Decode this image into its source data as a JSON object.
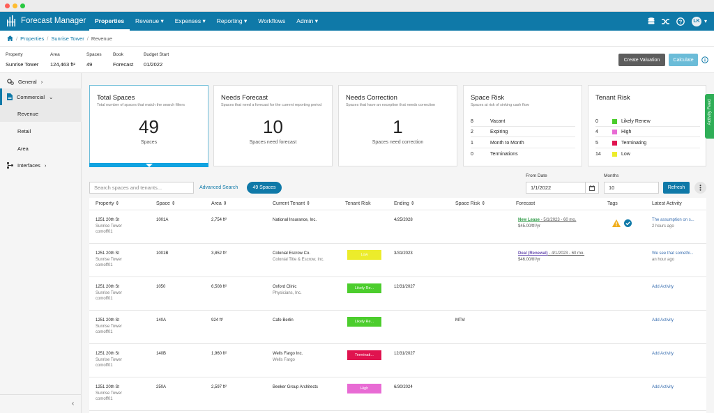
{
  "app": {
    "brand": "Forecast Manager"
  },
  "nav": {
    "items": [
      "Properties",
      "Revenue",
      "Expenses",
      "Reporting",
      "Workflows",
      "Admin"
    ],
    "user_initials": "LK"
  },
  "breadcrumb": [
    "Properties",
    "Sunrise Tower",
    "Revenue"
  ],
  "property_bar": {
    "fields": [
      {
        "label": "Property",
        "value": "Sunrise Tower"
      },
      {
        "label": "Area",
        "value": "124,463 ft²"
      },
      {
        "label": "Spaces",
        "value": "49"
      },
      {
        "label": "Book",
        "value": "Forecast"
      },
      {
        "label": "Budget Start",
        "value": "01/2022"
      }
    ],
    "create_valuation": "Create Valuation",
    "calculate": "Calculate"
  },
  "sidebar": {
    "items": [
      "General",
      "Commercial",
      "Revenue",
      "Retail",
      "Area",
      "Interfaces"
    ],
    "collapse": "‹"
  },
  "cards": {
    "total": {
      "title": "Total Spaces",
      "desc": "Total number of spaces that match the search filters",
      "value": "49",
      "caption": "Spaces"
    },
    "forecast": {
      "title": "Needs Forecast",
      "desc": "Spaces that need a forecast for the current reporting period",
      "value": "10",
      "caption": "Spaces need forecast"
    },
    "correction": {
      "title": "Needs Correction",
      "desc": "Spaces that have an exception that needs correction",
      "value": "1",
      "caption": "Spaces need correction"
    },
    "space_risk": {
      "title": "Space Risk",
      "desc": "Spaces at risk of sinking cash flow",
      "rows": [
        {
          "n": "8",
          "label": "Vacant"
        },
        {
          "n": "2",
          "label": "Expiring"
        },
        {
          "n": "1",
          "label": "Month to Month"
        },
        {
          "n": "0",
          "label": "Terminations"
        }
      ]
    },
    "tenant_risk": {
      "title": "Tenant Risk",
      "rows": [
        {
          "n": "0",
          "label": "Likely Renew",
          "color": "#4ccd2d"
        },
        {
          "n": "4",
          "label": "High",
          "color": "#e86bd4"
        },
        {
          "n": "5",
          "label": "Terminating",
          "color": "#e0134f"
        },
        {
          "n": "14",
          "label": "Low",
          "color": "#ecec2b"
        }
      ]
    }
  },
  "activity_feed": "Activity Feed",
  "filters": {
    "search_placeholder": "Search spaces and tenants...",
    "advanced_search": "Advanced Search",
    "spaces_pill": "49 Spaces",
    "from_date_label": "From Date",
    "from_date": "1/1/2022",
    "months_label": "Months",
    "months": "10",
    "refresh": "Refresh"
  },
  "table": {
    "headers": [
      "Property",
      "Space",
      "Area",
      "Current Tenant",
      "Tenant Risk",
      "Ending",
      "Space Risk",
      "Forecast",
      "Tags",
      "Latest Activity"
    ],
    "rows": [
      {
        "property": "1251 20th St",
        "prop2": "Sunrise Tower",
        "prop3": "comoff01",
        "space": "1001A",
        "area": "2,754 ft²",
        "tenant": "National Insurance, Inc.",
        "tenant2": "",
        "risk": "",
        "ending": "4/25/2028",
        "space_risk": "",
        "fc_link": "New Lease",
        "fc_rest": " - 5/1/2023 - 60 mo.",
        "fc_rate": "$45.00/ft²/yr",
        "activity": "The assumption on s...",
        "activity2": "2 hours ago"
      },
      {
        "property": "1251 20th St",
        "prop2": "Sunrise Tower",
        "prop3": "comoff01",
        "space": "1001B",
        "area": "3,852 ft²",
        "tenant": "Colonial Escrow Co.",
        "tenant2": "Colonial Title & Escrow, Inc.",
        "risk": "Low",
        "ending": "3/31/2023",
        "space_risk": "",
        "fc_link": "Deal (Renewal)",
        "fc_rest": " - 4/1/2023 - 60 mo.",
        "fc_rate": "$46.00/ft²/yr",
        "activity": "We see that somethi...",
        "activity2": "an hour ago"
      },
      {
        "property": "1251 20th St",
        "prop2": "Sunrise Tower",
        "prop3": "comoff01",
        "space": "1050",
        "area": "6,508 ft²",
        "tenant": "Oxford Clinic",
        "tenant2": "Physicians, Inc.",
        "risk": "Likely Re...",
        "ending": "12/31/2027",
        "space_risk": "",
        "fc_link": "",
        "fc_rest": "",
        "fc_rate": "",
        "activity": "Add Activity",
        "activity2": ""
      },
      {
        "property": "1251 20th St",
        "prop2": "Sunrise Tower",
        "prop3": "comoff01",
        "space": "140A",
        "area": "924 ft²",
        "tenant": "Cafe Berlin",
        "tenant2": "",
        "risk": "Likely Re...",
        "ending": "",
        "space_risk": "MTM",
        "fc_link": "",
        "fc_rest": "",
        "fc_rate": "",
        "activity": "Add Activity",
        "activity2": ""
      },
      {
        "property": "1251 20th St",
        "prop2": "Sunrise Tower",
        "prop3": "comoff01",
        "space": "140B",
        "area": "1,960 ft²",
        "tenant": "Wells Fargo Inc.",
        "tenant2": "Wells Fargo",
        "risk": "Terminati...",
        "ending": "12/31/2027",
        "space_risk": "",
        "fc_link": "",
        "fc_rest": "",
        "fc_rate": "",
        "activity": "Add Activity",
        "activity2": ""
      },
      {
        "property": "1251 20th St",
        "prop2": "Sunrise Tower",
        "prop3": "comoff01",
        "space": "250A",
        "area": "2,597 ft²",
        "tenant": "Beeker Group Architects",
        "tenant2": "",
        "risk": "High",
        "ending": "6/30/2024",
        "space_risk": "",
        "fc_link": "",
        "fc_rest": "",
        "fc_rate": "",
        "activity": "Add Activity",
        "activity2": ""
      }
    ]
  },
  "colors": {
    "brand": "#0f79a8",
    "low": "#ecec2b",
    "likely_renew": "#4ccd2d",
    "terminating": "#e0134f",
    "high": "#e86bd4"
  }
}
